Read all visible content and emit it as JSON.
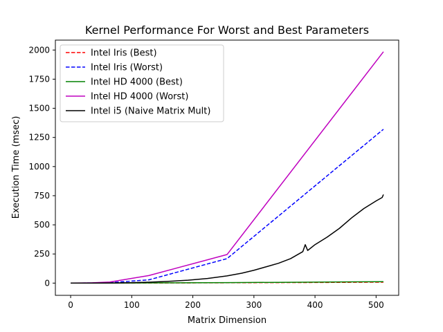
{
  "chart_data": {
    "type": "line",
    "title": "Kernel Performance For Worst and Best Parameters",
    "xlabel": "Matrix Dimension",
    "ylabel": "Execution Time (msec)",
    "xlim": [
      -25,
      537
    ],
    "ylim": [
      -105,
      2085
    ],
    "xticks": [
      0,
      100,
      200,
      300,
      400,
      500
    ],
    "yticks": [
      0,
      250,
      500,
      750,
      1000,
      1250,
      1500,
      1750,
      2000
    ],
    "grid": false,
    "legend_position": "top-left",
    "series": [
      {
        "name": "Intel Iris (Best)",
        "color": "#ff0000",
        "dash": "dashed",
        "x": [
          0,
          64,
          128,
          256,
          384,
          512
        ],
        "y": [
          0,
          0.5,
          1,
          3,
          5,
          8
        ]
      },
      {
        "name": "Intel Iris (Worst)",
        "color": "#0000ff",
        "dash": "dashed",
        "x": [
          0,
          32,
          64,
          128,
          256,
          512
        ],
        "y": [
          0,
          1,
          4,
          28,
          210,
          1320
        ]
      },
      {
        "name": "Intel HD 4000 (Best)",
        "color": "#008000",
        "dash": "solid",
        "x": [
          0,
          64,
          128,
          256,
          384,
          512
        ],
        "y": [
          0,
          0.5,
          1.5,
          4,
          8,
          12
        ]
      },
      {
        "name": "Intel HD 4000 (Worst)",
        "color": "#bf00bf",
        "dash": "solid",
        "x": [
          0,
          32,
          64,
          128,
          256,
          512
        ],
        "y": [
          0,
          2,
          9,
          65,
          245,
          1985
        ]
      },
      {
        "name": "Intel i5 (Naive Matrix Mult)",
        "color": "#000000",
        "dash": "solid",
        "x": [
          0,
          32,
          64,
          96,
          128,
          160,
          192,
          224,
          256,
          280,
          300,
          320,
          340,
          360,
          380,
          384,
          388,
          400,
          420,
          440,
          460,
          480,
          500,
          505,
          510,
          512
        ],
        "y": [
          0,
          0,
          1,
          3,
          8,
          15,
          25,
          40,
          62,
          85,
          110,
          140,
          170,
          210,
          270,
          330,
          280,
          330,
          395,
          470,
          560,
          640,
          705,
          720,
          735,
          760
        ]
      }
    ]
  }
}
